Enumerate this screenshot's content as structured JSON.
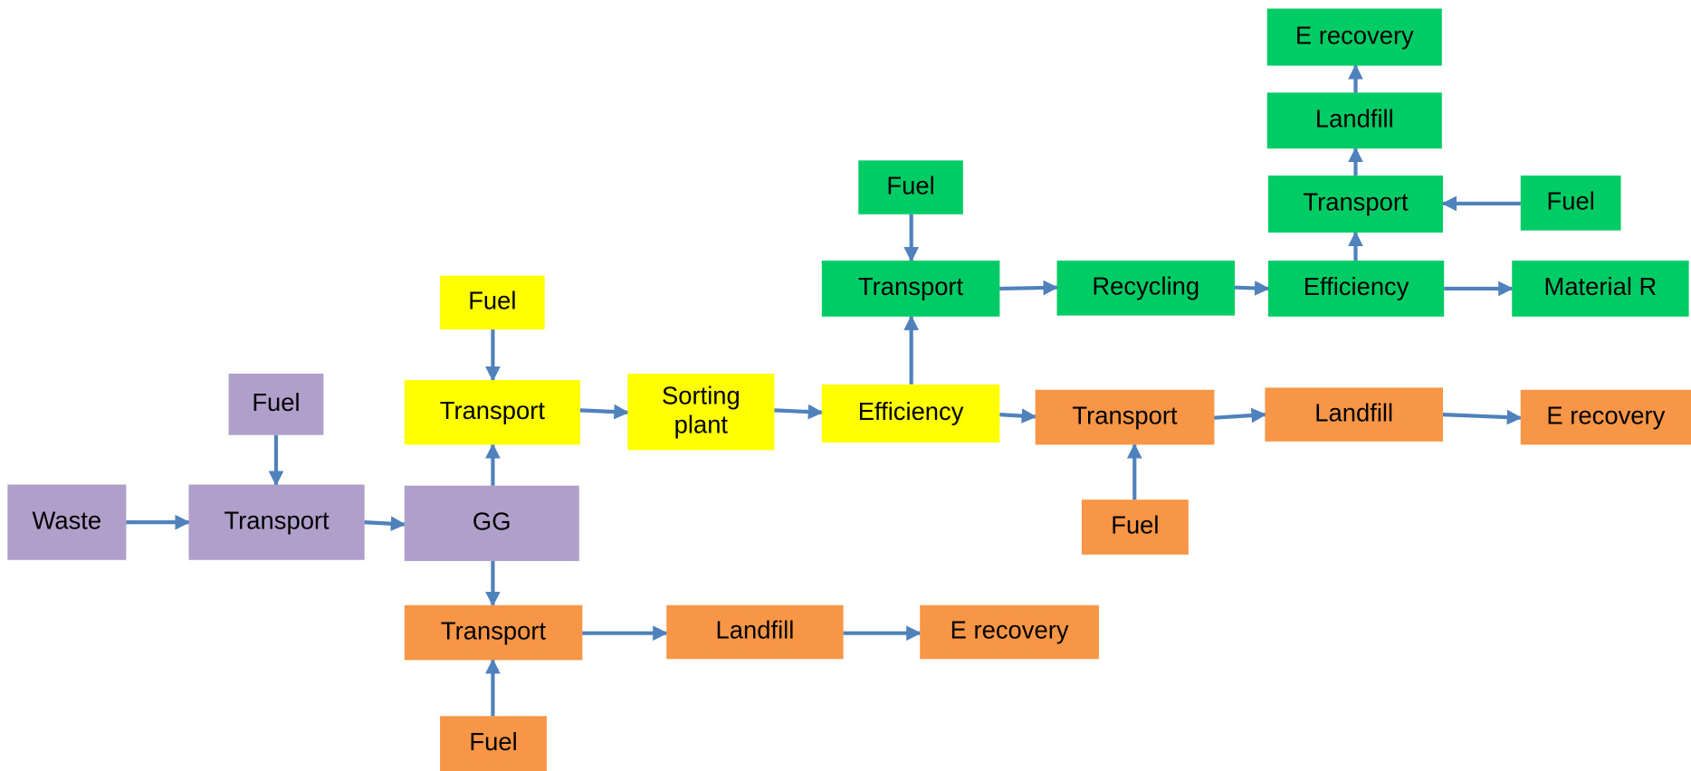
{
  "nodes": [
    {
      "lines": [
        "Waste"
      ]
    },
    {
      "lines": [
        "Fuel"
      ]
    },
    {
      "lines": [
        "Transport"
      ]
    },
    {
      "lines": [
        "GG"
      ]
    },
    {
      "lines": [
        "Fuel"
      ]
    },
    {
      "lines": [
        "Transport"
      ]
    },
    {
      "lines": [
        "Sorting",
        "plant"
      ]
    },
    {
      "lines": [
        "Efficiency"
      ]
    },
    {
      "lines": [
        "Transport"
      ]
    },
    {
      "lines": [
        "Fuel"
      ]
    },
    {
      "lines": [
        "Landfill"
      ]
    },
    {
      "lines": [
        "E recovery"
      ]
    },
    {
      "lines": [
        "Transport"
      ]
    },
    {
      "lines": [
        "Fuel"
      ]
    },
    {
      "lines": [
        "Landfill"
      ]
    },
    {
      "lines": [
        "E recovery"
      ]
    },
    {
      "lines": [
        "Fuel"
      ]
    },
    {
      "lines": [
        "Transport"
      ]
    },
    {
      "lines": [
        "Recycling"
      ]
    },
    {
      "lines": [
        "Efficiency"
      ]
    },
    {
      "lines": [
        "Material R"
      ]
    },
    {
      "lines": [
        "Transport"
      ]
    },
    {
      "lines": [
        "Fuel"
      ]
    },
    {
      "lines": [
        "Landfill"
      ]
    },
    {
      "lines": [
        "E recovery"
      ]
    }
  ]
}
